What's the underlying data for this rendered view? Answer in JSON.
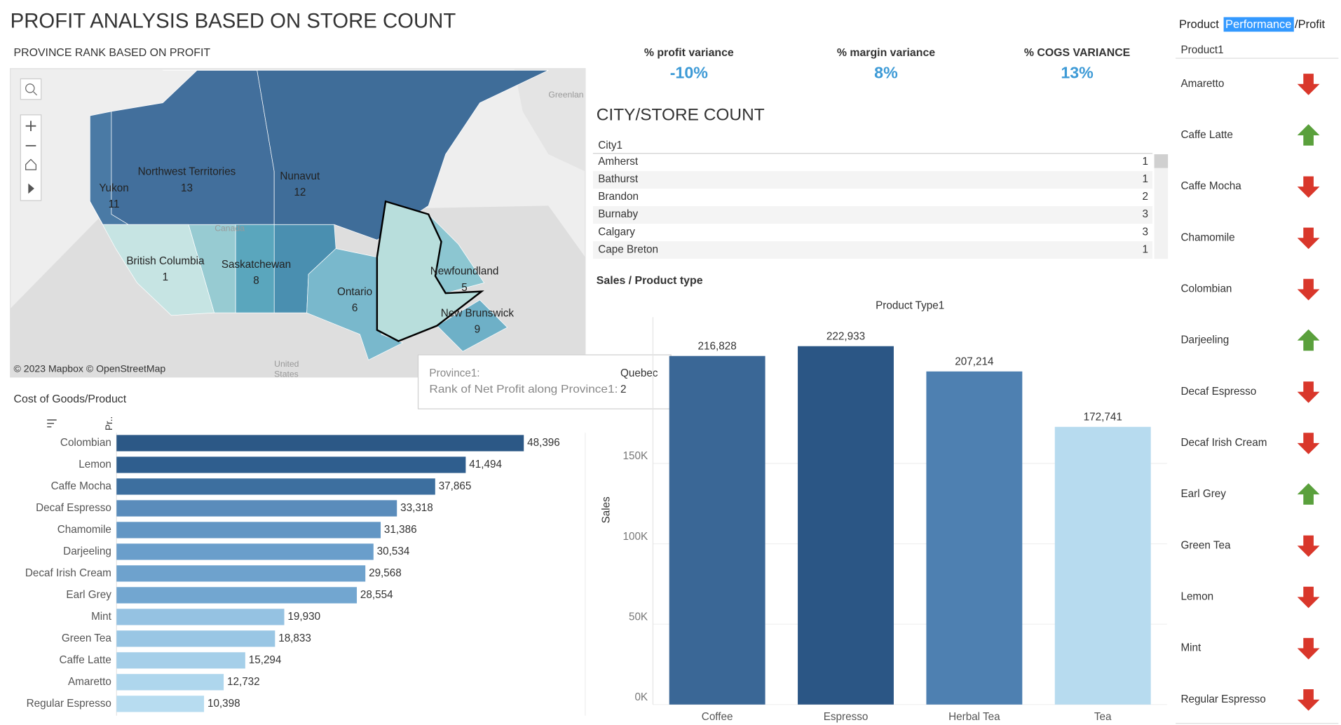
{
  "title": "PROFIT ANALYSIS BASED ON STORE COUNT",
  "map": {
    "title": "PROVINCE RANK BASED ON PROFIT",
    "provinces": [
      {
        "name": "Yukon",
        "rank": 11,
        "color": "#4a7aa5"
      },
      {
        "name": "Northwest Territories",
        "rank": 13,
        "color": "#426f9c"
      },
      {
        "name": "Nunavut",
        "rank": 12,
        "color": "#3f6d99"
      },
      {
        "name": "British Columbia",
        "rank": 1,
        "color": "#c6e4e3"
      },
      {
        "name": "Saskatchewan",
        "rank": 8,
        "color": "#5aa6bd"
      },
      {
        "name": "Ontario",
        "rank": 6,
        "color": "#79b8cc"
      },
      {
        "name": "Newfoundland",
        "rank": 5,
        "color": "#8cc6d1"
      },
      {
        "name": "New Brunswick",
        "rank": 9,
        "color": "#6eb0c7"
      }
    ],
    "background_labels": [
      "Greenlan",
      "Canada",
      "United",
      "States"
    ],
    "attribution": "© 2023 Mapbox © OpenStreetMap",
    "tooltip": {
      "field_label": "Province1:",
      "field_value": "Quebec",
      "rank_label": "Rank of Net Profit along Province1:",
      "rank_value": 2
    }
  },
  "kpis": [
    {
      "label": "% profit variance",
      "value": "-10%"
    },
    {
      "label": "% margin variance",
      "value": "8%"
    },
    {
      "label": "% COGS VARIANCE",
      "value": "13%"
    }
  ],
  "city_table": {
    "title": "CITY/STORE COUNT",
    "header": "City1",
    "rows": [
      [
        "Amherst",
        1
      ],
      [
        "Bathurst",
        1
      ],
      [
        "Brandon",
        2
      ],
      [
        "Burnaby",
        3
      ],
      [
        "Calgary",
        3
      ],
      [
        "Cape Breton",
        1
      ]
    ]
  },
  "chart_data": [
    {
      "type": "bar",
      "orientation": "horizontal",
      "title": "Cost of Goods/Product",
      "axis_header": "Pr..",
      "categories": [
        "Colombian",
        "Lemon",
        "Caffe Mocha",
        "Decaf Espresso",
        "Chamomile",
        "Darjeeling",
        "Decaf Irish Cream",
        "Earl Grey",
        "Mint",
        "Green Tea",
        "Caffe Latte",
        "Amaretto",
        "Regular Espresso"
      ],
      "values": [
        48396,
        41494,
        37865,
        33318,
        31386,
        30534,
        29568,
        28554,
        19930,
        18833,
        15294,
        12732,
        10398
      ],
      "value_labels": [
        "48,396",
        "41,494",
        "37,865",
        "33,318",
        "31,386",
        "30,534",
        "29,568",
        "28,554",
        "19,930",
        "18,833",
        "15,294",
        "12,732",
        "10,398"
      ],
      "colors": [
        "#2c5886",
        "#2f5e8e",
        "#3d6f9f",
        "#5a8cbb",
        "#6296c4",
        "#6a9ecb",
        "#6ea2cd",
        "#72a6d0",
        "#95c2e2",
        "#99c6e4",
        "#a5cfe9",
        "#aed6ed",
        "#b7dcf0"
      ],
      "xlim": [
        0,
        55700
      ]
    },
    {
      "type": "bar",
      "orientation": "vertical",
      "title": "Sales / Product type",
      "x_header": "Product Type1",
      "y_label": "Sales",
      "categories": [
        "Coffee",
        "Espresso",
        "Herbal Tea",
        "Tea"
      ],
      "values": [
        216828,
        222933,
        207214,
        172741
      ],
      "value_labels": [
        "216,828",
        "222,933",
        "207,214",
        "172,741"
      ],
      "colors": [
        "#3a6796",
        "#2b5685",
        "#4e80b1",
        "#b7dbef"
      ],
      "ylim": [
        0,
        241000
      ],
      "yticks": [
        {
          "value": 0,
          "label": "0K"
        },
        {
          "value": 50000,
          "label": "50K"
        },
        {
          "value": 100000,
          "label": "100K"
        },
        {
          "value": 150000,
          "label": "150K"
        }
      ],
      "grid": true
    }
  ],
  "product_panel": {
    "title_parts": [
      "Product",
      "Performance",
      "/Profit"
    ],
    "header": "Product1",
    "items": [
      {
        "name": "Amaretto",
        "trend": "down"
      },
      {
        "name": "Caffe Latte",
        "trend": "up"
      },
      {
        "name": "Caffe Mocha",
        "trend": "down"
      },
      {
        "name": "Chamomile",
        "trend": "down"
      },
      {
        "name": "Colombian",
        "trend": "down"
      },
      {
        "name": "Darjeeling",
        "trend": "up"
      },
      {
        "name": "Decaf Espresso",
        "trend": "down"
      },
      {
        "name": "Decaf Irish Cream",
        "trend": "down"
      },
      {
        "name": "Earl Grey",
        "trend": "up"
      },
      {
        "name": "Green Tea",
        "trend": "down"
      },
      {
        "name": "Lemon",
        "trend": "down"
      },
      {
        "name": "Mint",
        "trend": "down"
      },
      {
        "name": "Regular Espresso",
        "trend": "down"
      }
    ]
  }
}
